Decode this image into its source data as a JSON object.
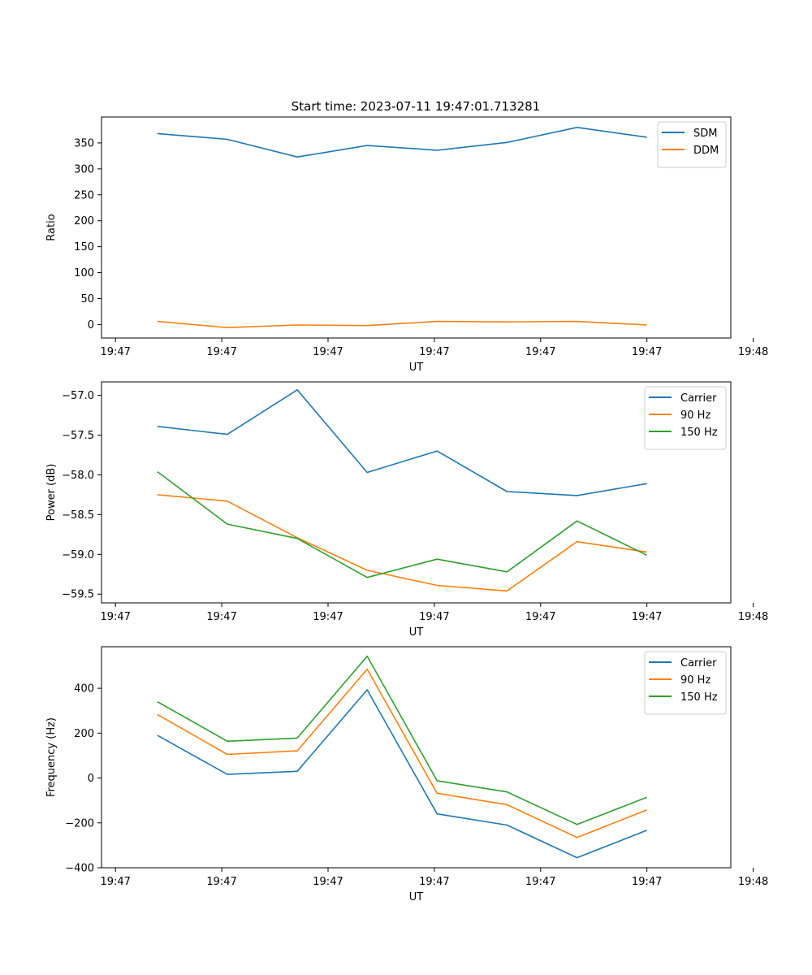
{
  "figure": {
    "title": "Start time: 2023-07-11 19:47:01.713281"
  },
  "chart_data": [
    {
      "type": "line",
      "ylabel": "Ratio",
      "xlabel": "UT",
      "x": [
        1,
        2,
        3,
        4,
        5,
        6,
        7,
        8
      ],
      "xlim": [
        0.2,
        9.2
      ],
      "xticks": [
        0.4,
        1.9,
        3.4,
        4.9,
        6.4,
        7.9,
        9.4
      ],
      "xtick_positions": [
        0.4,
        1.92,
        3.44,
        4.96,
        6.48,
        8.0,
        9.52
      ],
      "xtick_labels": [
        "19:47",
        "19:47",
        "19:47",
        "19:47",
        "19:47",
        "19:47",
        "19:48"
      ],
      "ylim": [
        -26,
        400
      ],
      "yticks": [
        0,
        50,
        100,
        150,
        200,
        250,
        300,
        350
      ],
      "ytick_labels": [
        "0",
        "50",
        "100",
        "150",
        "200",
        "250",
        "300",
        "350"
      ],
      "legend": "top-right",
      "series": [
        {
          "name": "SDM",
          "color": "#1f77b4",
          "values": [
            368,
            357,
            323,
            345,
            336,
            351,
            380,
            361
          ]
        },
        {
          "name": "DDM",
          "color": "#ff7f0e",
          "values": [
            6,
            -6,
            -1,
            -2,
            6,
            5,
            6,
            -1
          ]
        }
      ]
    },
    {
      "type": "line",
      "ylabel": "Power (dB)",
      "xlabel": "UT",
      "x": [
        1,
        2,
        3,
        4,
        5,
        6,
        7,
        8
      ],
      "xlim": [
        0.2,
        9.2
      ],
      "xtick_positions": [
        0.4,
        1.92,
        3.44,
        4.96,
        6.48,
        8.0,
        9.52
      ],
      "xtick_labels": [
        "19:47",
        "19:47",
        "19:47",
        "19:47",
        "19:47",
        "19:47",
        "19:48"
      ],
      "ylim": [
        -59.61,
        -56.83
      ],
      "yticks": [
        -59.5,
        -59.0,
        -58.5,
        -58.0,
        -57.5,
        -57.0
      ],
      "ytick_labels": [
        "−59.5",
        "−59.0",
        "−58.5",
        "−58.0",
        "−57.5",
        "−57.0"
      ],
      "legend": "top-right",
      "series": [
        {
          "name": "Carrier",
          "color": "#1f77b4",
          "values": [
            -57.39,
            -57.49,
            -56.93,
            -57.97,
            -57.7,
            -58.21,
            -58.26,
            -58.11
          ]
        },
        {
          "name": "90 Hz",
          "color": "#ff7f0e",
          "values": [
            -58.25,
            -58.33,
            -58.79,
            -59.2,
            -59.39,
            -59.46,
            -58.84,
            -58.97
          ]
        },
        {
          "name": "150 Hz",
          "color": "#2ca02c",
          "values": [
            -57.96,
            -58.62,
            -58.8,
            -59.29,
            -59.06,
            -59.22,
            -58.58,
            -59.01
          ]
        }
      ]
    },
    {
      "type": "line",
      "ylabel": "Frequency (Hz)",
      "xlabel": "UT",
      "x": [
        1,
        2,
        3,
        4,
        5,
        6,
        7,
        8
      ],
      "xlim": [
        0.2,
        9.2
      ],
      "xtick_positions": [
        0.4,
        1.92,
        3.44,
        4.96,
        6.48,
        8.0,
        9.52
      ],
      "xtick_labels": [
        "19:47",
        "19:47",
        "19:47",
        "19:47",
        "19:47",
        "19:47",
        "19:48"
      ],
      "ylim": [
        -400,
        585
      ],
      "yticks": [
        -400,
        -200,
        0,
        200,
        400
      ],
      "ytick_labels": [
        "−400",
        "−200",
        "0",
        "200",
        "400"
      ],
      "legend": "top-right",
      "series": [
        {
          "name": "Carrier",
          "color": "#1f77b4",
          "values": [
            190,
            16,
            30,
            393,
            -160,
            -210,
            -355,
            -233
          ]
        },
        {
          "name": "90 Hz",
          "color": "#ff7f0e",
          "values": [
            283,
            105,
            121,
            485,
            -68,
            -119,
            -265,
            -142
          ]
        },
        {
          "name": "150 Hz",
          "color": "#2ca02c",
          "values": [
            340,
            164,
            178,
            543,
            -12,
            -62,
            -207,
            -86
          ]
        }
      ]
    }
  ]
}
